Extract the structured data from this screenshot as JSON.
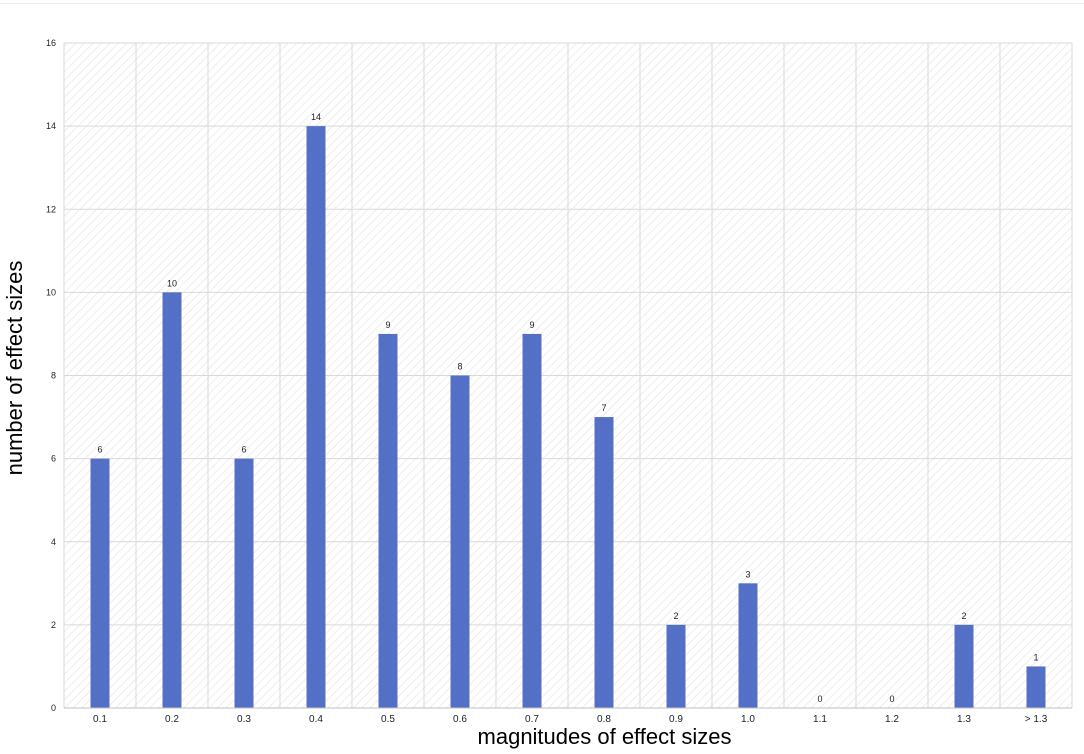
{
  "chart_data": {
    "type": "bar",
    "title": "",
    "xlabel": "magnitudes of effect sizes",
    "ylabel": "number of effect sizes",
    "categories": [
      "0.1",
      "0.2",
      "0.3",
      "0.4",
      "0.5",
      "0.6",
      "0.7",
      "0.8",
      "0.9",
      "1.0",
      "1.1",
      "1.2",
      "1.3",
      "> 1.3"
    ],
    "values": [
      6,
      10,
      6,
      14,
      9,
      8,
      9,
      7,
      2,
      3,
      0,
      0,
      2,
      1
    ],
    "data_labels": [
      "6",
      "10",
      "6",
      "14",
      "9",
      "8",
      "9",
      "7",
      "2",
      "3",
      "0",
      "0",
      "2",
      "1"
    ],
    "yticks": [
      "0",
      "2",
      "4",
      "6",
      "8",
      "10",
      "12",
      "14",
      "16"
    ],
    "ylim": [
      0,
      16
    ],
    "grid": true,
    "legend": false,
    "colors": {
      "bar": "#5470c6",
      "grid": "#d9d9d9",
      "hatch": "#e3e3e3",
      "axis": "#bfbfbf",
      "text": "#222222"
    }
  }
}
